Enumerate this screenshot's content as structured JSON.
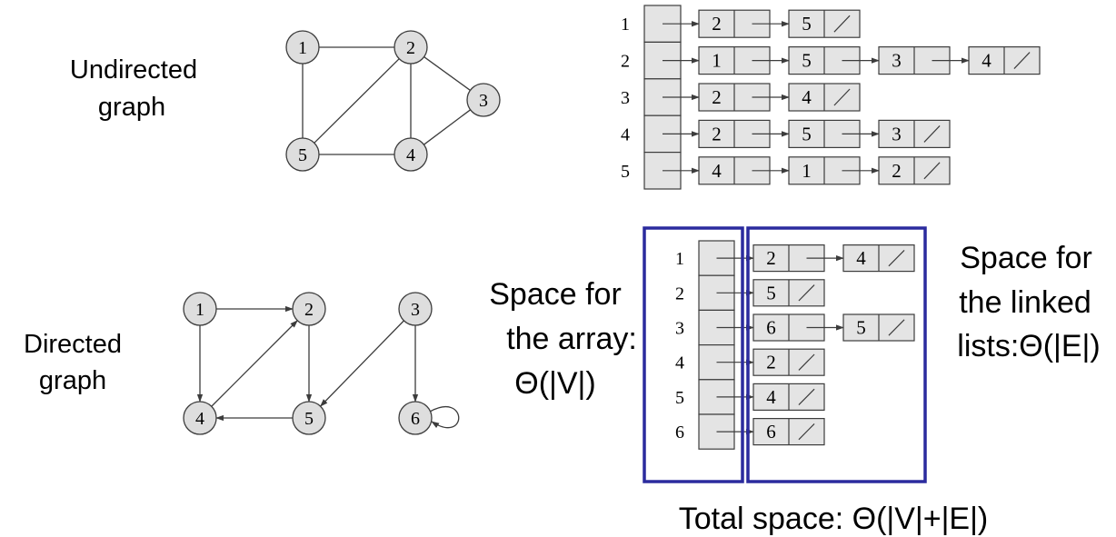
{
  "captions": {
    "undirected_line1": "Undirected",
    "undirected_line2": "graph",
    "directed_line1": "Directed",
    "directed_line2": "graph",
    "array_space_line1": "Space for",
    "array_space_line2": "the array:",
    "array_space_line3": "Θ(|V|)",
    "list_space_line1": "Space for",
    "list_space_line2": "the linked",
    "list_space_line3": "lists:Θ(|E|)",
    "total_space": "Total space: Θ(|V|+|E|)"
  },
  "undirected_graph": {
    "vertices": [
      "1",
      "2",
      "3",
      "4",
      "5"
    ],
    "edges": [
      [
        "1",
        "2"
      ],
      [
        "1",
        "5"
      ],
      [
        "2",
        "5"
      ],
      [
        "2",
        "4"
      ],
      [
        "2",
        "3"
      ],
      [
        "3",
        "4"
      ],
      [
        "4",
        "5"
      ]
    ]
  },
  "directed_graph": {
    "vertices": [
      "1",
      "2",
      "3",
      "4",
      "5",
      "6"
    ],
    "edges": [
      [
        "1",
        "2"
      ],
      [
        "1",
        "4"
      ],
      [
        "2",
        "5"
      ],
      [
        "4",
        "2"
      ],
      [
        "5",
        "4"
      ],
      [
        "3",
        "5"
      ],
      [
        "3",
        "6"
      ],
      [
        "6",
        "6"
      ]
    ]
  },
  "undirected_adjacency": {
    "rows": [
      {
        "index": "1",
        "list": [
          "2",
          "5"
        ]
      },
      {
        "index": "2",
        "list": [
          "1",
          "5",
          "3",
          "4"
        ]
      },
      {
        "index": "3",
        "list": [
          "2",
          "4"
        ]
      },
      {
        "index": "4",
        "list": [
          "2",
          "5",
          "3"
        ]
      },
      {
        "index": "5",
        "list": [
          "4",
          "1",
          "2"
        ]
      }
    ]
  },
  "directed_adjacency": {
    "rows": [
      {
        "index": "1",
        "list": [
          "2",
          "4"
        ]
      },
      {
        "index": "2",
        "list": [
          "5"
        ]
      },
      {
        "index": "3",
        "list": [
          "6",
          "5"
        ]
      },
      {
        "index": "4",
        "list": [
          "2"
        ]
      },
      {
        "index": "5",
        "list": [
          "4"
        ]
      },
      {
        "index": "6",
        "list": [
          "6"
        ]
      }
    ]
  },
  "colors": {
    "node_fill": "#dedede",
    "cell_fill": "#e4e4e4",
    "stroke": "#3c3c3c",
    "highlight": "#2b2b9e",
    "text": "#000000"
  }
}
